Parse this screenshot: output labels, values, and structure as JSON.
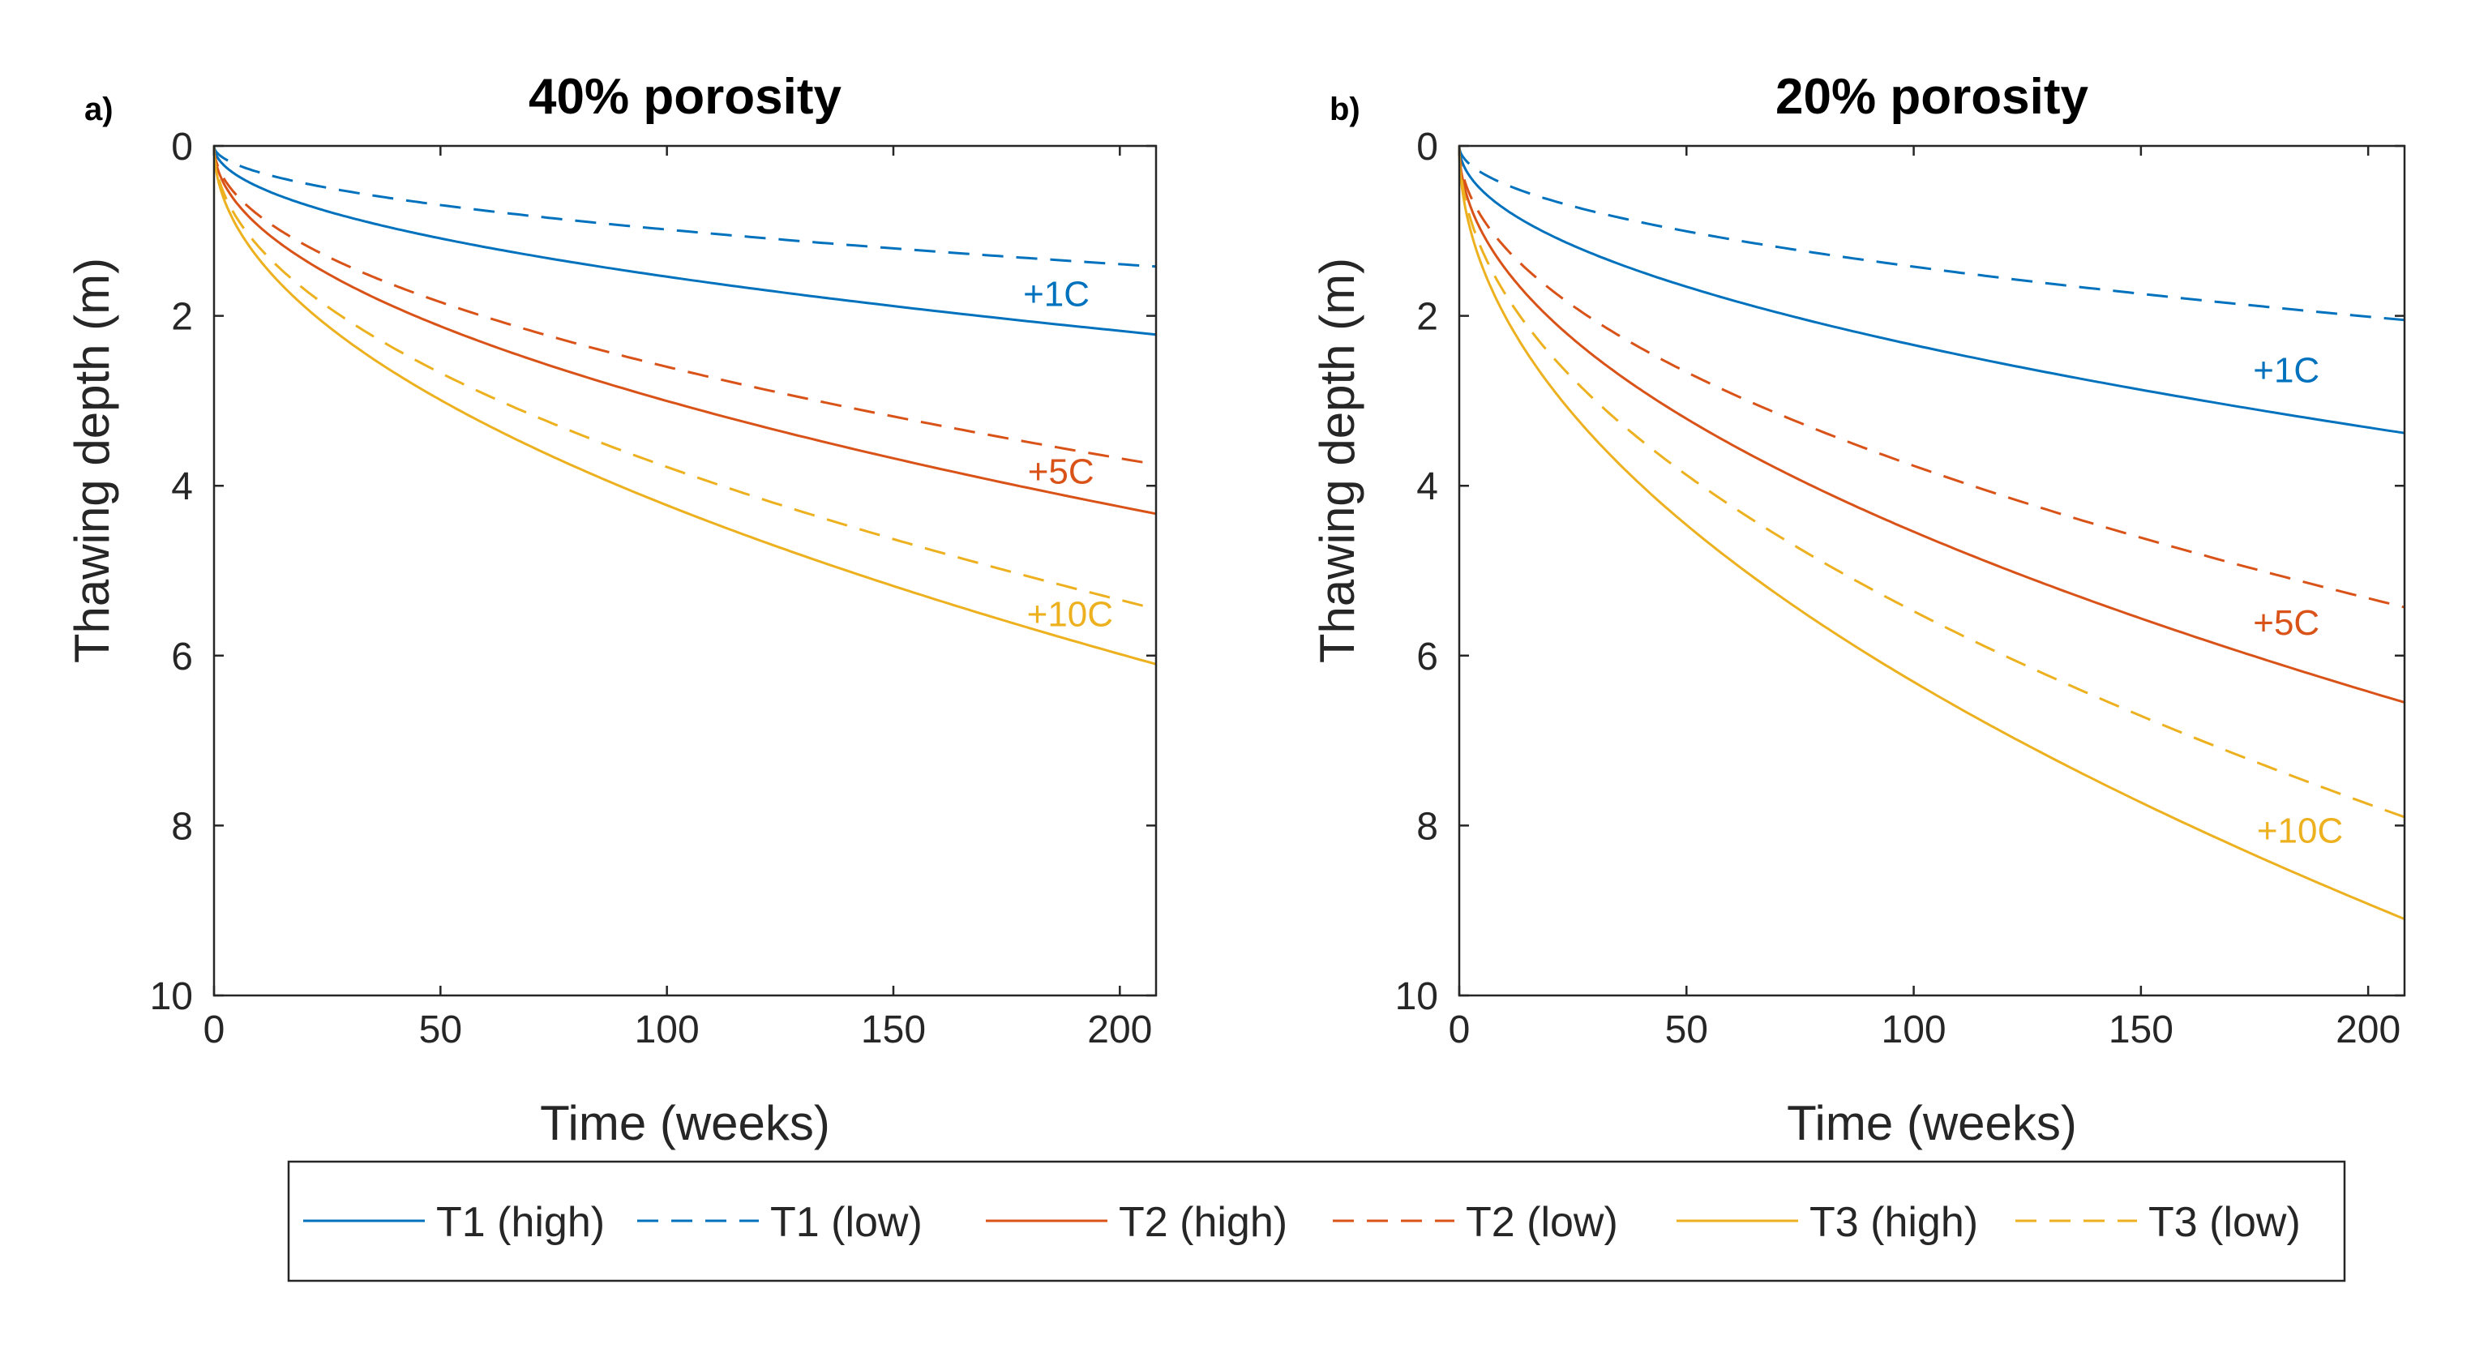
{
  "figure": {
    "legend": [
      {
        "label": "T1 (high)",
        "color": "#0072BD",
        "dashed": false
      },
      {
        "label": "T1 (low)",
        "color": "#0072BD",
        "dashed": true
      },
      {
        "label": "T2 (high)",
        "color": "#D95319",
        "dashed": false
      },
      {
        "label": "T2 (low)",
        "color": "#D95319",
        "dashed": true
      },
      {
        "label": "T3 (high)",
        "color": "#EDB120",
        "dashed": false
      },
      {
        "label": "T3 (low)",
        "color": "#EDB120",
        "dashed": true
      }
    ]
  },
  "chart_data": [
    {
      "panel_label": "a)",
      "type": "line",
      "title": "40% porosity",
      "xlabel": "Time (weeks)",
      "ylabel": "Thawing depth (m)",
      "xlim": [
        0,
        208
      ],
      "ylim": [
        0,
        10
      ],
      "y_reversed": true,
      "xticks": [
        0,
        50,
        100,
        150,
        200
      ],
      "yticks": [
        0,
        2,
        4,
        6,
        8,
        10
      ],
      "series": [
        {
          "name": "T1 (high)",
          "color": "#0072BD",
          "dashed": false,
          "final_depth": 2.22
        },
        {
          "name": "T1 (low)",
          "color": "#0072BD",
          "dashed": true,
          "final_depth": 1.42
        },
        {
          "name": "T2 (high)",
          "color": "#D95319",
          "dashed": false,
          "final_depth": 4.33
        },
        {
          "name": "T2 (low)",
          "color": "#D95319",
          "dashed": true,
          "final_depth": 3.75
        },
        {
          "name": "T3 (high)",
          "color": "#EDB120",
          "dashed": false,
          "final_depth": 6.1
        },
        {
          "name": "T3 (low)",
          "color": "#EDB120",
          "dashed": true,
          "final_depth": 5.45
        }
      ],
      "annotations": [
        {
          "text": "+1C",
          "x": 186,
          "y": 1.73,
          "color": "#0072BD"
        },
        {
          "text": "+5C",
          "x": 187,
          "y": 3.82,
          "color": "#D95319"
        },
        {
          "text": "+10C",
          "x": 189,
          "y": 5.5,
          "color": "#EDB120"
        }
      ]
    },
    {
      "panel_label": "b)",
      "type": "line",
      "title": "20% porosity",
      "xlabel": "Time (weeks)",
      "ylabel": "Thawing depth (m)",
      "xlim": [
        0,
        208
      ],
      "ylim": [
        0,
        10
      ],
      "y_reversed": true,
      "xticks": [
        0,
        50,
        100,
        150,
        200
      ],
      "yticks": [
        0,
        2,
        4,
        6,
        8,
        10
      ],
      "series": [
        {
          "name": "T1 (high)",
          "color": "#0072BD",
          "dashed": false,
          "final_depth": 3.38
        },
        {
          "name": "T1 (low)",
          "color": "#0072BD",
          "dashed": true,
          "final_depth": 2.05
        },
        {
          "name": "T2 (high)",
          "color": "#D95319",
          "dashed": false,
          "final_depth": 6.55
        },
        {
          "name": "T2 (low)",
          "color": "#D95319",
          "dashed": true,
          "final_depth": 5.43
        },
        {
          "name": "T3 (high)",
          "color": "#EDB120",
          "dashed": false,
          "final_depth": 9.1
        },
        {
          "name": "T3 (low)",
          "color": "#EDB120",
          "dashed": true,
          "final_depth": 7.9
        }
      ],
      "annotations": [
        {
          "text": "+1C",
          "x": 182,
          "y": 2.63,
          "color": "#0072BD"
        },
        {
          "text": "+5C",
          "x": 182,
          "y": 5.6,
          "color": "#D95319"
        },
        {
          "text": "+10C",
          "x": 185,
          "y": 8.05,
          "color": "#EDB120"
        }
      ]
    }
  ]
}
